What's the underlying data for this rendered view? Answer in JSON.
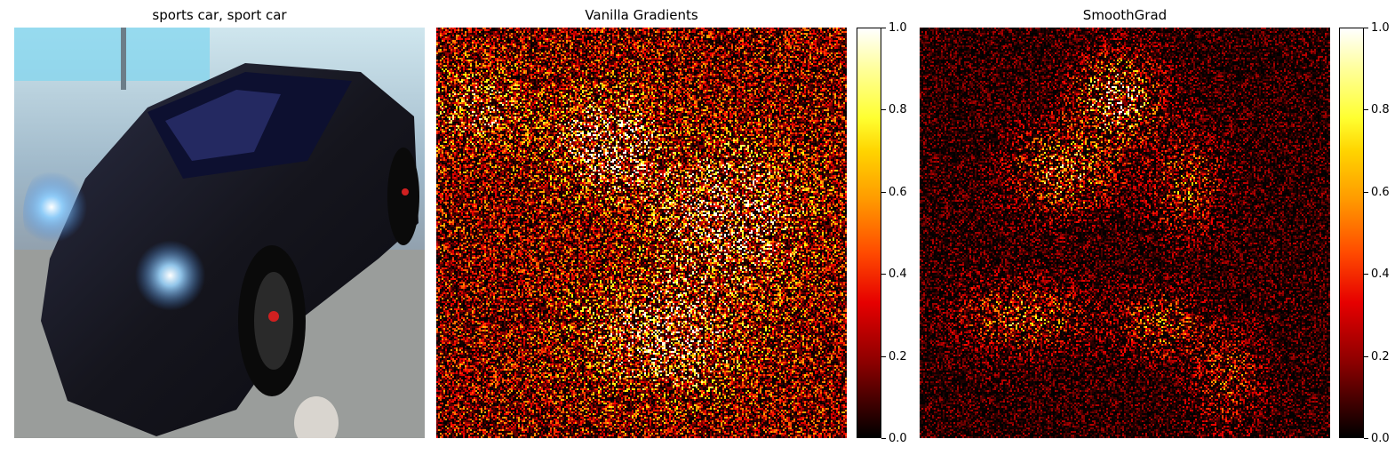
{
  "panels": [
    {
      "title": "sports car, sport car",
      "kind": "photo"
    },
    {
      "title": "Vanilla Gradients",
      "kind": "heatmap"
    },
    {
      "title": "SmoothGrad",
      "kind": "heatmap"
    }
  ],
  "chart_data": [
    {
      "type": "heatmap",
      "title": "Vanilla Gradients",
      "colormap": "hot",
      "colorbar": {
        "ticks": [
          "0.0",
          "0.2",
          "0.4",
          "0.6",
          "0.8",
          "1.0"
        ],
        "range": [
          0,
          1
        ]
      }
    },
    {
      "type": "heatmap",
      "title": "SmoothGrad",
      "colormap": "hot",
      "colorbar": {
        "ticks": [
          "0.0",
          "0.2",
          "0.4",
          "0.6",
          "0.8",
          "1.0"
        ],
        "range": [
          0,
          1
        ]
      }
    }
  ],
  "colors": {
    "photo_body": "#15151d",
    "headlight": "#9fd8ff",
    "floor": "#8f9497"
  }
}
